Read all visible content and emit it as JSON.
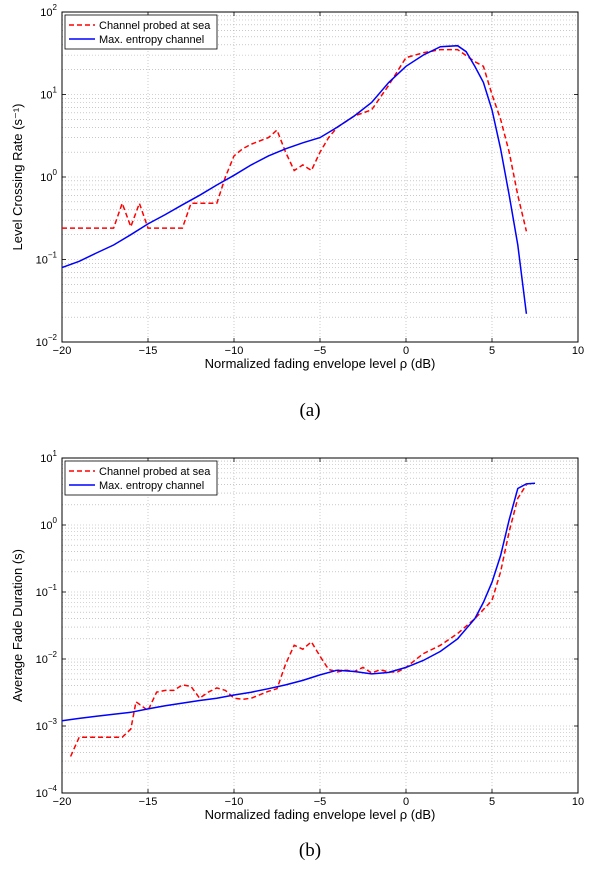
{
  "chart_data": [
    {
      "type": "line",
      "caption": "(a)",
      "xlabel": "Normalized fading envelope level ρ (dB)",
      "ylabel": "Level Crossing Rate (s⁻¹)",
      "xlim": [
        -20,
        10
      ],
      "ylim": [
        0.01,
        100
      ],
      "yscale": "log",
      "grid": true,
      "legend": "top-left",
      "x_ticks": [
        "−20",
        "−15",
        "−10",
        "−5",
        "0",
        "5",
        "10"
      ],
      "y_ticks": [
        {
          "base": "10",
          "exp": "−2"
        },
        {
          "base": "10",
          "exp": "−1"
        },
        {
          "base": "10",
          "exp": "0"
        },
        {
          "base": "10",
          "exp": "1"
        },
        {
          "base": "10",
          "exp": "2"
        }
      ],
      "series": [
        {
          "name": "Channel probed at sea",
          "color": "#ff0000",
          "dash": "dashed",
          "x": [
            -20,
            -19,
            -18,
            -17,
            -16.5,
            -16,
            -15.5,
            -15,
            -14,
            -13,
            -12.5,
            -12,
            -11,
            -10.5,
            -10,
            -9.5,
            -9,
            -8,
            -7.5,
            -7,
            -6.5,
            -6,
            -5.5,
            -5,
            -4.5,
            -4,
            -3,
            -2,
            -1,
            0,
            1,
            2,
            3,
            4,
            4.5,
            5,
            5.5,
            6,
            6.5,
            7
          ],
          "y": [
            0.24,
            0.24,
            0.24,
            0.24,
            0.48,
            0.25,
            0.48,
            0.24,
            0.24,
            0.24,
            0.48,
            0.48,
            0.48,
            1.0,
            1.8,
            2.2,
            2.5,
            3.0,
            3.7,
            2.0,
            1.2,
            1.4,
            1.2,
            2.0,
            3.0,
            4.0,
            5.5,
            6.5,
            13,
            28,
            32,
            35,
            35,
            25,
            22,
            10,
            5,
            2,
            0.6,
            0.22
          ]
        },
        {
          "name": "Max. entropy channel",
          "color": "#0000ff",
          "dash": "solid",
          "x": [
            -20,
            -19,
            -18,
            -17,
            -16,
            -15,
            -14,
            -13,
            -12,
            -11,
            -10,
            -9,
            -8,
            -7,
            -6,
            -5,
            -4,
            -3,
            -2,
            -1,
            0,
            1,
            2,
            3,
            3.5,
            4,
            4.5,
            5,
            5.5,
            6,
            6.5,
            7
          ],
          "y": [
            0.08,
            0.095,
            0.12,
            0.15,
            0.2,
            0.27,
            0.35,
            0.46,
            0.6,
            0.8,
            1.05,
            1.4,
            1.8,
            2.2,
            2.6,
            3.0,
            4.0,
            5.5,
            8.0,
            14,
            22,
            30,
            38,
            39,
            33,
            22,
            14,
            6.5,
            2.2,
            0.6,
            0.15,
            0.022
          ]
        }
      ]
    },
    {
      "type": "line",
      "caption": "(b)",
      "xlabel": "Normalized fading envelope level ρ (dB)",
      "ylabel": "Average Fade Duration (s)",
      "xlim": [
        -20,
        10
      ],
      "ylim": [
        0.0001,
        10
      ],
      "yscale": "log",
      "grid": true,
      "legend": "top-left",
      "x_ticks": [
        "−20",
        "−15",
        "−10",
        "−5",
        "0",
        "5",
        "10"
      ],
      "y_ticks": [
        {
          "base": "10",
          "exp": "−4"
        },
        {
          "base": "10",
          "exp": "−3"
        },
        {
          "base": "10",
          "exp": "−2"
        },
        {
          "base": "10",
          "exp": "−1"
        },
        {
          "base": "10",
          "exp": "0"
        },
        {
          "base": "10",
          "exp": "1"
        }
      ],
      "series": [
        {
          "name": "Channel probed at sea",
          "color": "#ff0000",
          "dash": "dashed",
          "x": [
            -19.5,
            -19,
            -18.5,
            -17.5,
            -16.5,
            -16,
            -15.7,
            -15,
            -14.5,
            -14,
            -13.5,
            -13,
            -12.5,
            -12,
            -11.5,
            -11,
            -10.5,
            -10,
            -9.5,
            -9,
            -8,
            -7.5,
            -7,
            -6.5,
            -6,
            -5.5,
            -5,
            -4.5,
            -4,
            -3.5,
            -3,
            -2.5,
            -2,
            -1.5,
            -1,
            -0.5,
            0,
            1,
            2,
            3,
            4,
            5,
            5.5,
            6,
            6.5,
            7
          ],
          "y": [
            0.00035,
            0.00068,
            0.00068,
            0.00068,
            0.00068,
            0.0009,
            0.0023,
            0.0017,
            0.0032,
            0.0034,
            0.0034,
            0.0041,
            0.0039,
            0.0026,
            0.0032,
            0.0037,
            0.0034,
            0.0026,
            0.0025,
            0.0026,
            0.0033,
            0.0036,
            0.0084,
            0.016,
            0.014,
            0.018,
            0.011,
            0.007,
            0.0064,
            0.0068,
            0.0065,
            0.0075,
            0.0062,
            0.0069,
            0.0064,
            0.0064,
            0.0075,
            0.012,
            0.016,
            0.024,
            0.04,
            0.075,
            0.2,
            0.8,
            2.5,
            4.0
          ]
        },
        {
          "name": "Max. entropy channel",
          "color": "#0000ff",
          "dash": "solid",
          "x": [
            -20,
            -19,
            -18,
            -17,
            -16,
            -15,
            -14,
            -13,
            -12,
            -11,
            -10,
            -9,
            -8,
            -7,
            -6,
            -5,
            -4,
            -3,
            -2,
            -1,
            0,
            1,
            2,
            3,
            4,
            4.5,
            5,
            5.5,
            6,
            6.5,
            7,
            7.5
          ],
          "y": [
            0.0012,
            0.0013,
            0.0014,
            0.0015,
            0.0016,
            0.0018,
            0.002,
            0.0022,
            0.0024,
            0.0026,
            0.0029,
            0.0032,
            0.0036,
            0.0041,
            0.0048,
            0.0058,
            0.0068,
            0.0065,
            0.006,
            0.0063,
            0.0075,
            0.0095,
            0.013,
            0.02,
            0.04,
            0.07,
            0.14,
            0.35,
            1.2,
            3.5,
            4.1,
            4.2
          ]
        }
      ]
    }
  ]
}
